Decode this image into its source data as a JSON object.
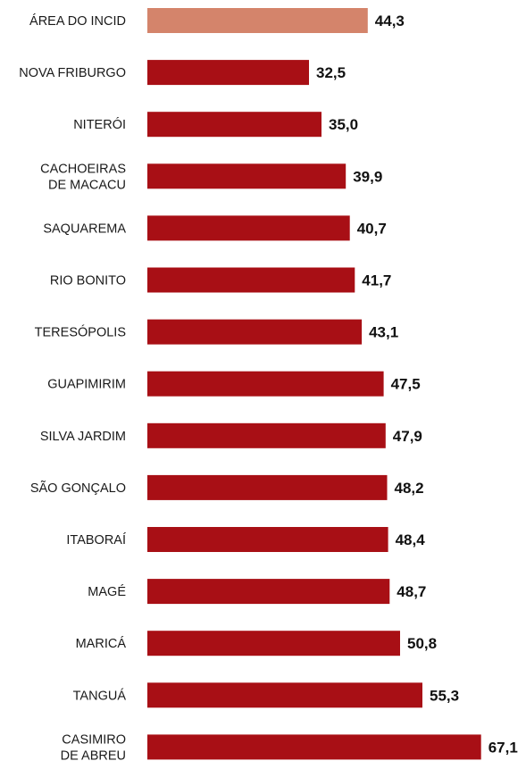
{
  "chart_data": {
    "type": "bar",
    "orientation": "horizontal",
    "categories": [
      [
        "ÁREA DO INCID"
      ],
      [
        "NOVA FRIBURGO"
      ],
      [
        "NITERÓI"
      ],
      [
        "CACHOEIRAS",
        "DE MACACU"
      ],
      [
        "SAQUAREMA"
      ],
      [
        "RIO BONITO"
      ],
      [
        "TERESÓPOLIS"
      ],
      [
        "GUAPIMIRIM"
      ],
      [
        "SILVA JARDIM"
      ],
      [
        "SÃO GONÇALO"
      ],
      [
        "ITABORAÍ"
      ],
      [
        "MAGÉ"
      ],
      [
        "MARICÁ"
      ],
      [
        "TANGUÁ"
      ],
      [
        "CASIMIRO",
        "DE ABREU"
      ]
    ],
    "values": [
      44.3,
      32.5,
      35.0,
      39.9,
      40.7,
      41.7,
      43.1,
      47.5,
      47.9,
      48.2,
      48.4,
      48.7,
      50.8,
      55.3,
      67.1
    ],
    "value_labels": [
      "44,3",
      "32,5",
      "35,0",
      "39,9",
      "40,7",
      "41,7",
      "43,1",
      "47,5",
      "47,9",
      "48,2",
      "48,4",
      "48,7",
      "50,8",
      "55,3",
      "67,1"
    ],
    "highlight_index": 0,
    "colors": {
      "highlight": "#d4846b",
      "bar": "#a80f15"
    },
    "title": "",
    "xlabel": "",
    "ylabel": "",
    "grid": false,
    "legend": "none"
  }
}
